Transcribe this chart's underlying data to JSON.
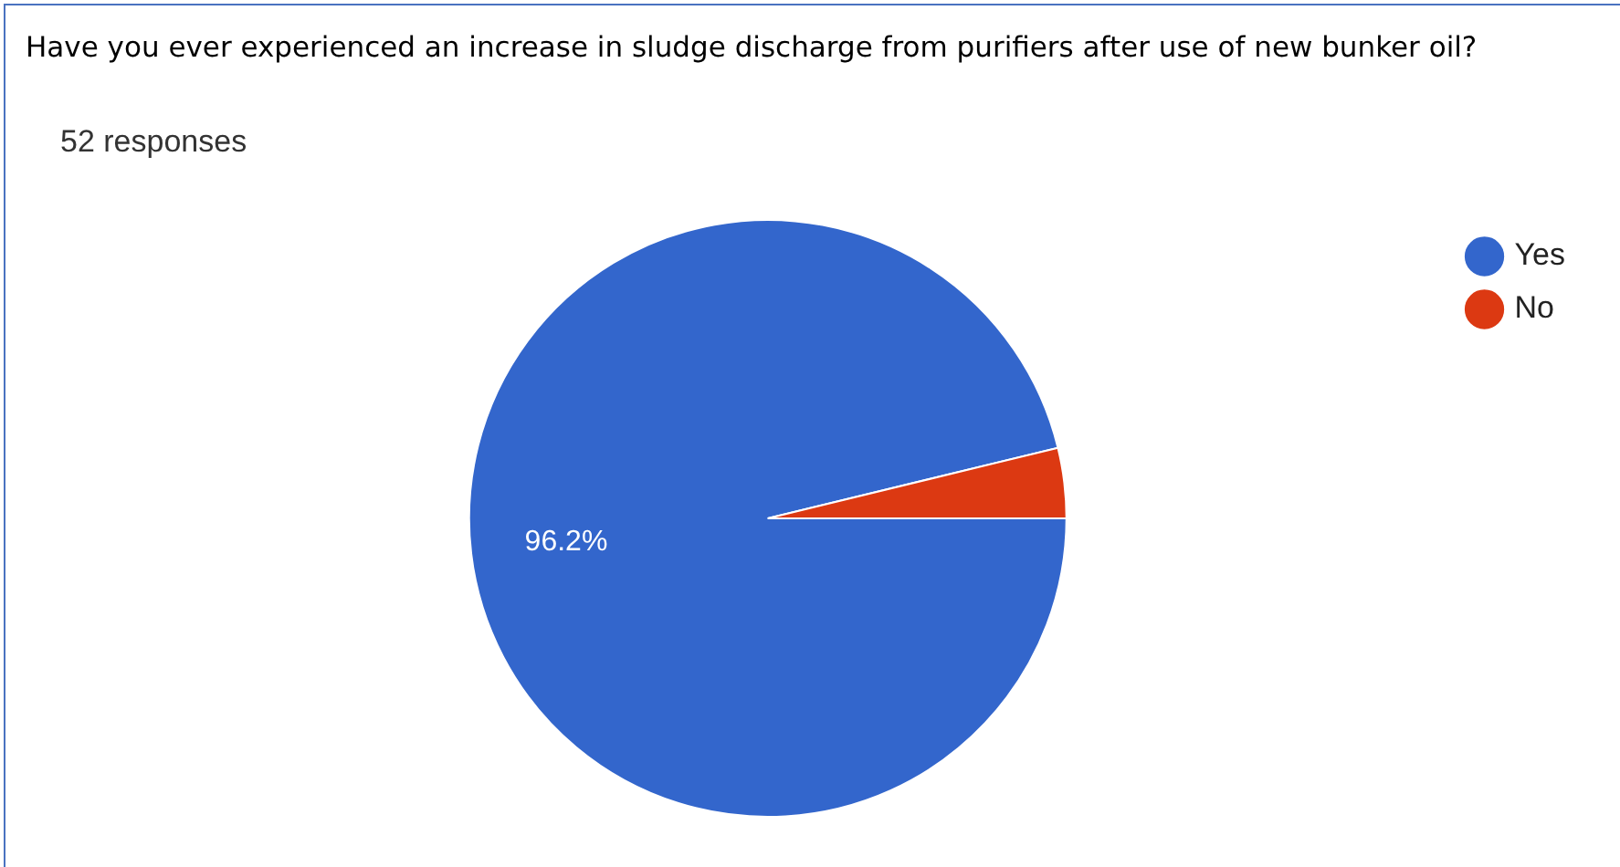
{
  "chart_data": {
    "type": "pie",
    "title": "Have you ever experienced an increase in sludge discharge from purifiers after use of new bunker oil?",
    "subtitle": "52 responses",
    "categories": [
      "Yes",
      "No"
    ],
    "values": [
      96.2,
      3.8
    ],
    "colors": [
      "#3366cc",
      "#dc3912"
    ],
    "value_labels": [
      "96.2%",
      null
    ],
    "legend": "top right"
  }
}
